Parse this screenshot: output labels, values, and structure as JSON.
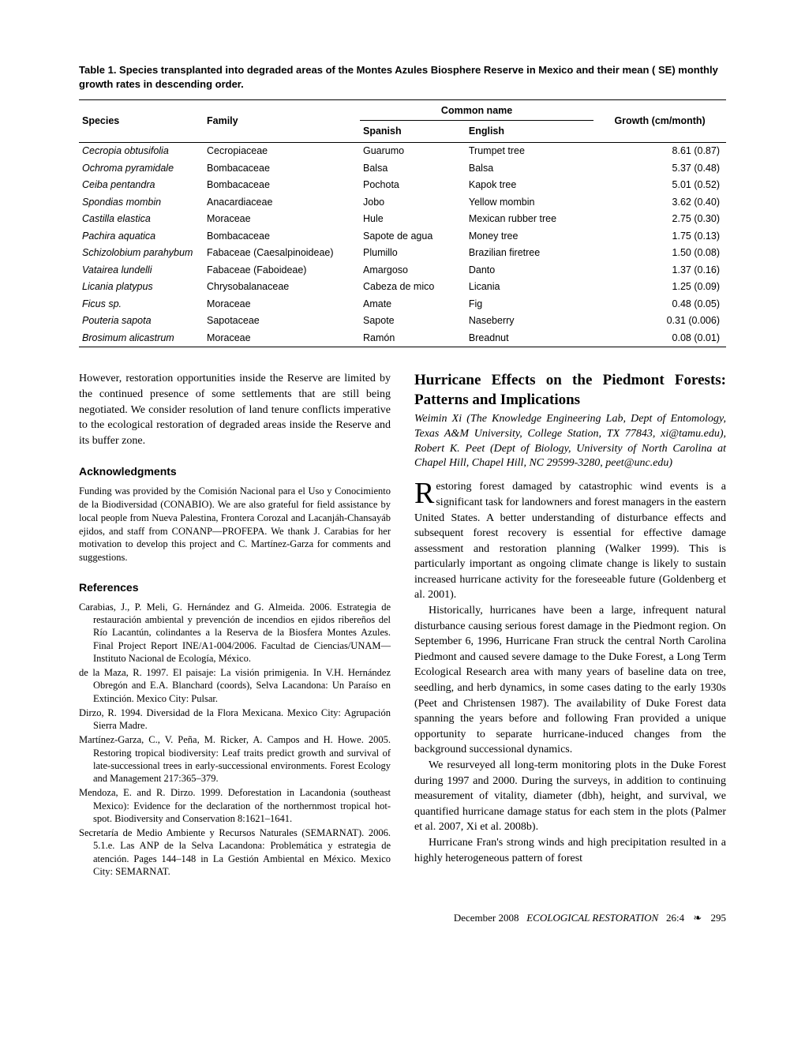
{
  "table": {
    "caption": "Table 1. Species transplanted into degraded areas of the Montes Azules Biosphere Reserve in Mexico and their mean (  SE) monthly growth rates in descending order.",
    "headers": {
      "species": "Species",
      "family": "Family",
      "common_name": "Common name",
      "spanish": "Spanish",
      "english": "English",
      "growth": "Growth (cm/month)"
    },
    "rows": [
      {
        "species": "Cecropia obtusifolia",
        "family": "Cecropiaceae",
        "spanish": "Guarumo",
        "english": "Trumpet tree",
        "growth": "8.61 (0.87)"
      },
      {
        "species": "Ochroma pyramidale",
        "family": "Bombacaceae",
        "spanish": "Balsa",
        "english": "Balsa",
        "growth": "5.37 (0.48)"
      },
      {
        "species": "Ceiba pentandra",
        "family": "Bombacaceae",
        "spanish": "Pochota",
        "english": "Kapok tree",
        "growth": "5.01 (0.52)"
      },
      {
        "species": "Spondias mombin",
        "family": "Anacardiaceae",
        "spanish": "Jobo",
        "english": "Yellow mombin",
        "growth": "3.62 (0.40)"
      },
      {
        "species": "Castilla elastica",
        "family": "Moraceae",
        "spanish": "Hule",
        "english": "Mexican rubber tree",
        "growth": "2.75 (0.30)"
      },
      {
        "species": "Pachira aquatica",
        "family": "Bombacaceae",
        "spanish": "Sapote de agua",
        "english": "Money tree",
        "growth": "1.75 (0.13)"
      },
      {
        "species": "Schizolobium parahybum",
        "family": "Fabaceae (Caesalpinoideae)",
        "spanish": "Plumillo",
        "english": "Brazilian firetree",
        "growth": "1.50 (0.08)"
      },
      {
        "species": "Vatairea lundelli",
        "family": "Fabaceae (Faboideae)",
        "spanish": "Amargoso",
        "english": "Danto",
        "growth": "1.37 (0.16)"
      },
      {
        "species": "Licania platypus",
        "family": "Chrysobalanaceae",
        "spanish": "Cabeza de mico",
        "english": "Licania",
        "growth": "1.25 (0.09)"
      },
      {
        "species": "Ficus sp.",
        "family": "Moraceae",
        "spanish": "Amate",
        "english": "Fig",
        "growth": "0.48 (0.05)"
      },
      {
        "species": "Pouteria sapota",
        "family": "Sapotaceae",
        "spanish": "Sapote",
        "english": "Naseberry",
        "growth": "0.31 (0.006)"
      },
      {
        "species": "Brosimum alicastrum",
        "family": "Moraceae",
        "spanish": "Ramón",
        "english": "Breadnut",
        "growth": "0.08 (0.01)"
      }
    ]
  },
  "left_col": {
    "intro_para": "However, restoration opportunities inside the Reserve are limited by the continued presence of some settlements that are still being negotiated. We consider resolution of land tenure conflicts imperative to the ecological restoration of degraded areas inside the Reserve and its buffer zone.",
    "ack_heading": "Acknowledgments",
    "ack_text": "Funding was provided by the Comisión Nacional para el Uso y Conocimiento de la Biodiversidad (CONABIO). We are also grateful for field assistance by local people from Nueva Palestina, Frontera Corozal and Lacanjáh-Chansayáb ejidos, and staff from CONANP—PROFEPA. We thank J. Carabias for her motivation to develop this project and C. Martínez-Garza for comments and suggestions.",
    "refs_heading": "References",
    "refs": [
      "Carabias, J., P. Meli, G. Hernández and G. Almeida. 2006. Estrategia de restauración ambiental y prevención de incendios en ejidos ribereños del Río Lacantún, colindantes a la Reserva de la Biosfera Montes Azules. Final Project Report INE/A1-004/2006. Facultad de Ciencias/UNAM—Instituto Nacional de Ecología, México.",
      "de la Maza, R. 1997. El paisaje: La visión primigenia. In V.H. Hernández Obregón and E.A. Blanchard (coords), Selva Lacandona: Un Paraíso en Extinción. Mexico City: Pulsar.",
      "Dirzo, R. 1994. Diversidad de la Flora Mexicana. Mexico City: Agrupación Sierra Madre.",
      "Martínez-Garza, C., V. Peña, M. Ricker, A. Campos and H. Howe. 2005. Restoring tropical biodiversity: Leaf traits predict growth and survival of late-successional trees in early-successional environments. Forest Ecology and Management 217:365–379.",
      "Mendoza, E. and R. Dirzo. 1999. Deforestation in Lacandonia (southeast Mexico): Evidence for the declaration of the northernmost tropical hot-spot. Biodiversity and Conservation 8:1621–1641.",
      "Secretaría de Medio Ambiente y Recursos Naturales (SEMARNAT). 2006. 5.1.e. Las ANP de la Selva Lacandona: Problemática y estrategia de atención. Pages 144–148 in La Gestión Ambiental en México. Mexico City: SEMARNAT."
    ]
  },
  "right_col": {
    "title": "Hurricane Effects on the Piedmont Forests: Patterns and Implications",
    "authors": "Weimin Xi (The Knowledge Engineering Lab, Dept of Entomology, Texas A&M University, College Station, TX 77843, xi@tamu.edu), Robert K. Peet (Dept of Biology, University of North Carolina at Chapel Hill, Chapel Hill, NC 29599-3280, peet@unc.edu)",
    "para1_first": "R",
    "para1_rest": "estoring forest damaged by catastrophic wind events is a significant task for landowners and forest managers in the eastern United States. A better understanding of disturbance effects and subsequent forest recovery is essential for effective damage assessment and restoration planning (Walker 1999). This is particularly important as ongoing climate change is likely to sustain increased hurricane activity for the foreseeable future (Goldenberg et al. 2001).",
    "para2": "Historically, hurricanes have been a large, infrequent natural disturbance causing serious forest damage in the Piedmont region. On September 6, 1996, Hurricane Fran struck the central North Carolina Piedmont and caused severe damage to the Duke Forest, a Long Term Ecological Research area with many years of baseline data on tree, seedling, and herb dynamics, in some cases dating to the early 1930s (Peet and Christensen 1987). The availability of Duke Forest data spanning the years before and following Fran provided a unique opportunity to separate hurricane-induced changes from the background successional dynamics.",
    "para3": "We resurveyed all long-term monitoring plots in the Duke Forest during 1997 and 2000. During the surveys, in addition to continuing measurement of vitality, diameter (dbh), height, and survival, we quantified hurricane damage status for each stem in the plots (Palmer et al. 2007, Xi et al. 2008b).",
    "para4": "Hurricane Fran's strong winds and high precipitation resulted in a highly heterogeneous pattern of forest"
  },
  "footer": {
    "date": "December 2008",
    "journal": "ECOLOGICAL RESTORATION",
    "issue": "26:4",
    "leaf": "❧",
    "page": "295"
  }
}
